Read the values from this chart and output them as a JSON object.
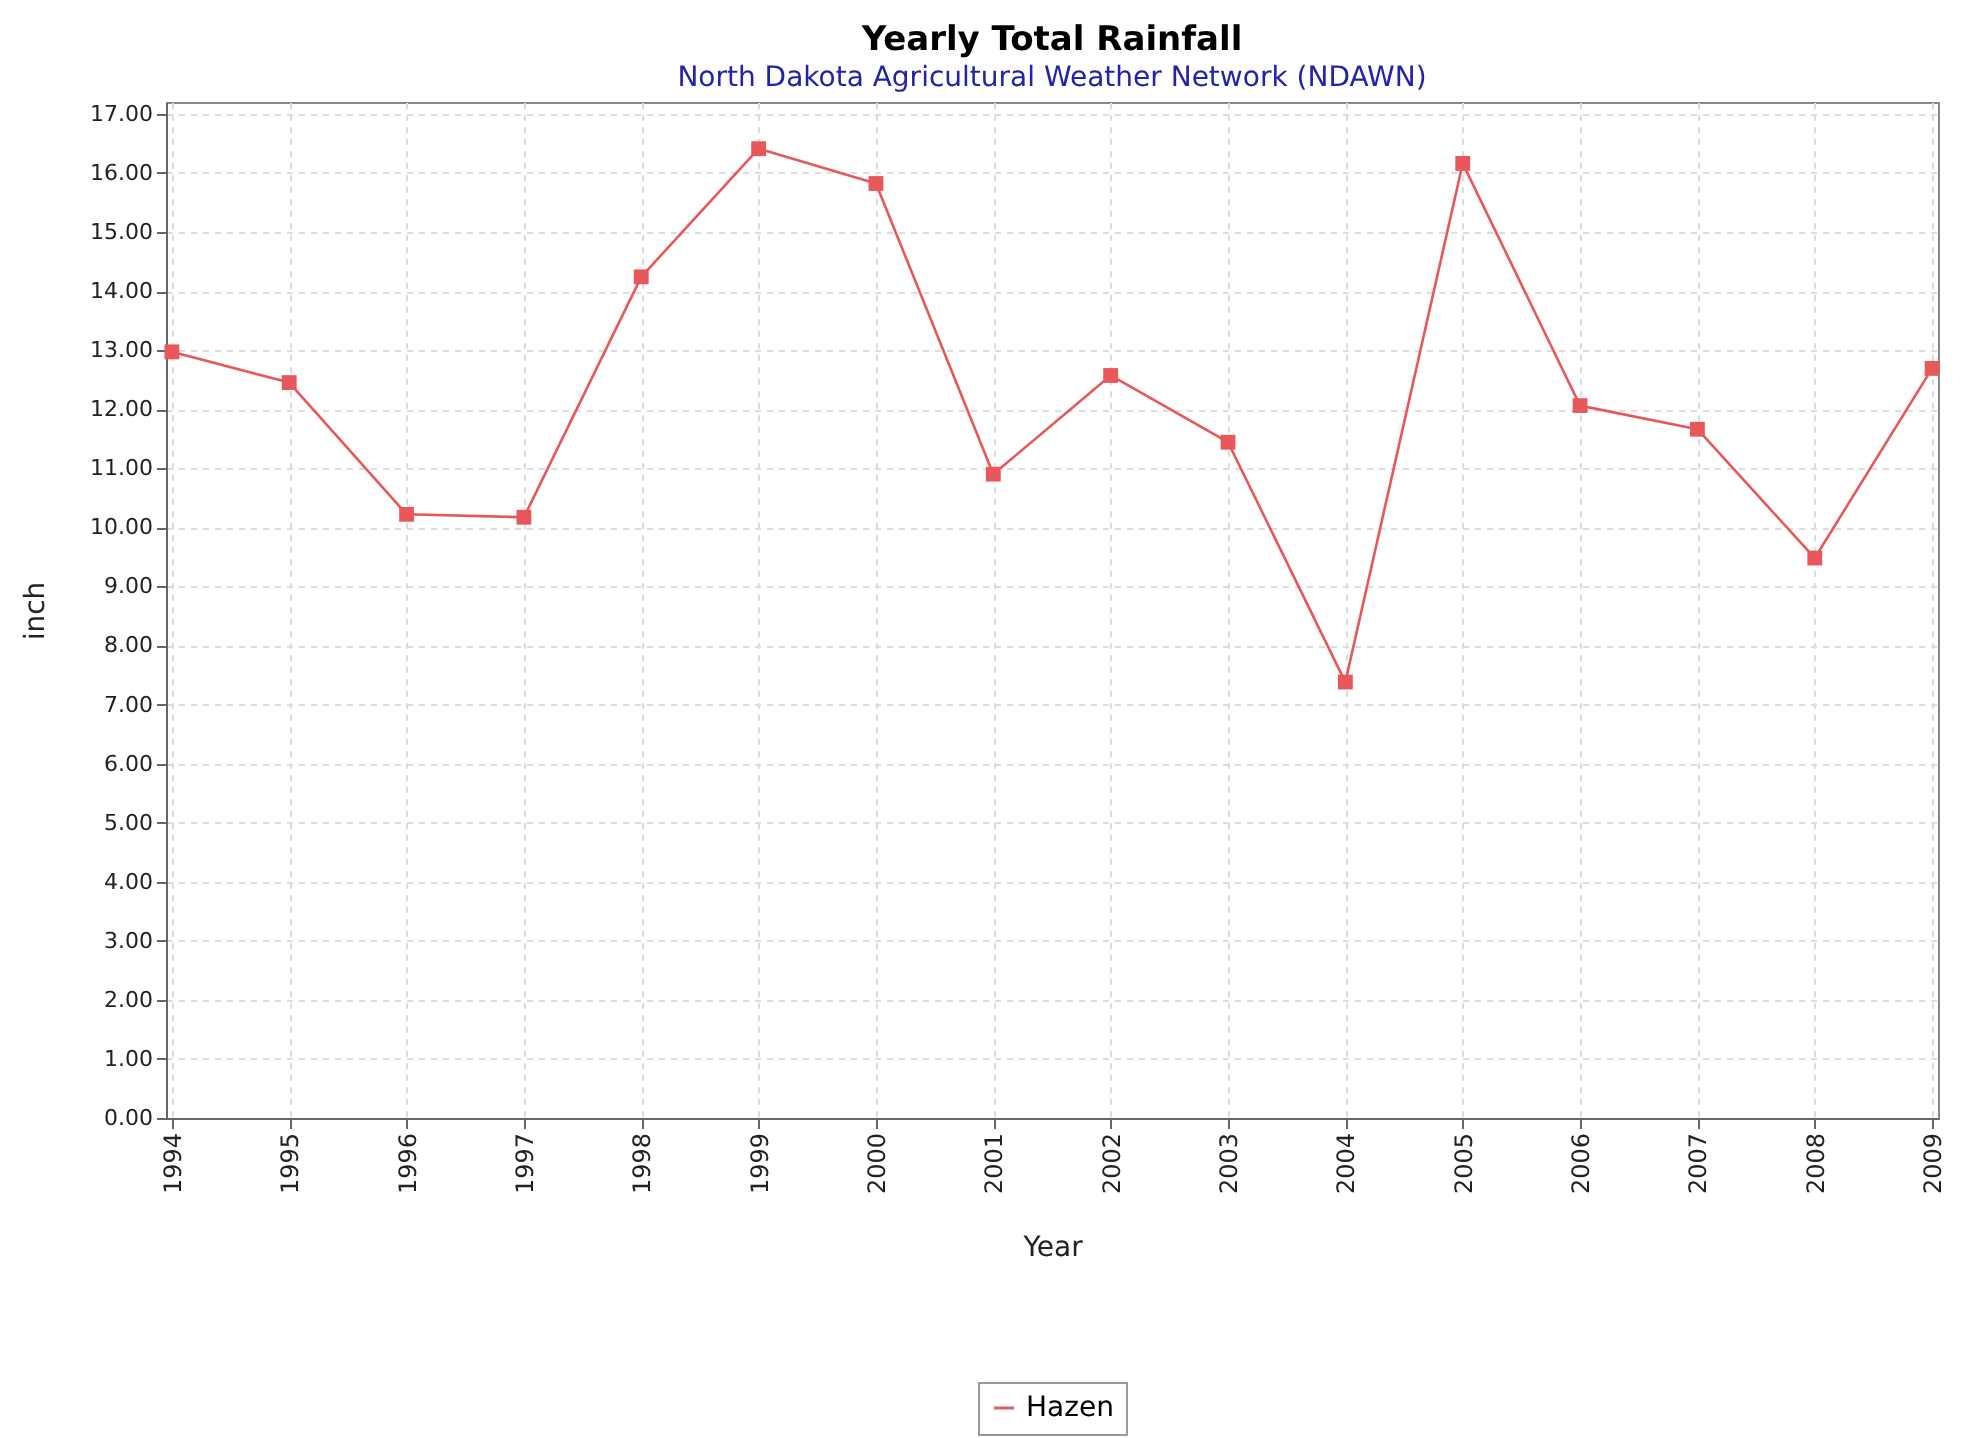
{
  "chart_data": {
    "type": "line",
    "title": "Yearly Total Rainfall",
    "subtitle": "North Dakota Agricultural Weather Network (NDAWN)",
    "xlabel": "Year",
    "ylabel": "inch",
    "categories": [
      "1994",
      "1995",
      "1996",
      "1997",
      "1998",
      "1999",
      "2000",
      "2001",
      "2002",
      "2003",
      "2004",
      "2005",
      "2006",
      "2007",
      "2008",
      "2009"
    ],
    "series": [
      {
        "name": "Hazen",
        "color": "#e8575a",
        "values": [
          12.97,
          12.45,
          10.22,
          10.17,
          14.24,
          16.41,
          15.82,
          10.9,
          12.57,
          11.44,
          7.38,
          16.16,
          12.06,
          11.66,
          9.48,
          12.69
        ]
      }
    ],
    "ylim": [
      0,
      17.2
    ],
    "yticks": [
      {
        "value": 0,
        "label": "0.00"
      },
      {
        "value": 1,
        "label": "1.00"
      },
      {
        "value": 2,
        "label": "2.00"
      },
      {
        "value": 3,
        "label": "3.00"
      },
      {
        "value": 4,
        "label": "4.00"
      },
      {
        "value": 5,
        "label": "5.00"
      },
      {
        "value": 6,
        "label": "6.00"
      },
      {
        "value": 7,
        "label": "7.00"
      },
      {
        "value": 8,
        "label": "8.00"
      },
      {
        "value": 9,
        "label": "9.00"
      },
      {
        "value": 10,
        "label": "10.00"
      },
      {
        "value": 11,
        "label": "11.00"
      },
      {
        "value": 12,
        "label": "12.00"
      },
      {
        "value": 13,
        "label": "13.00"
      },
      {
        "value": 14,
        "label": "14.00"
      },
      {
        "value": 15,
        "label": "15.00"
      },
      {
        "value": 16,
        "label": "16.00"
      },
      {
        "value": 17,
        "label": "17.00"
      }
    ],
    "grid": true,
    "marker": "square",
    "line_style": "solid",
    "legend": "bottom"
  }
}
